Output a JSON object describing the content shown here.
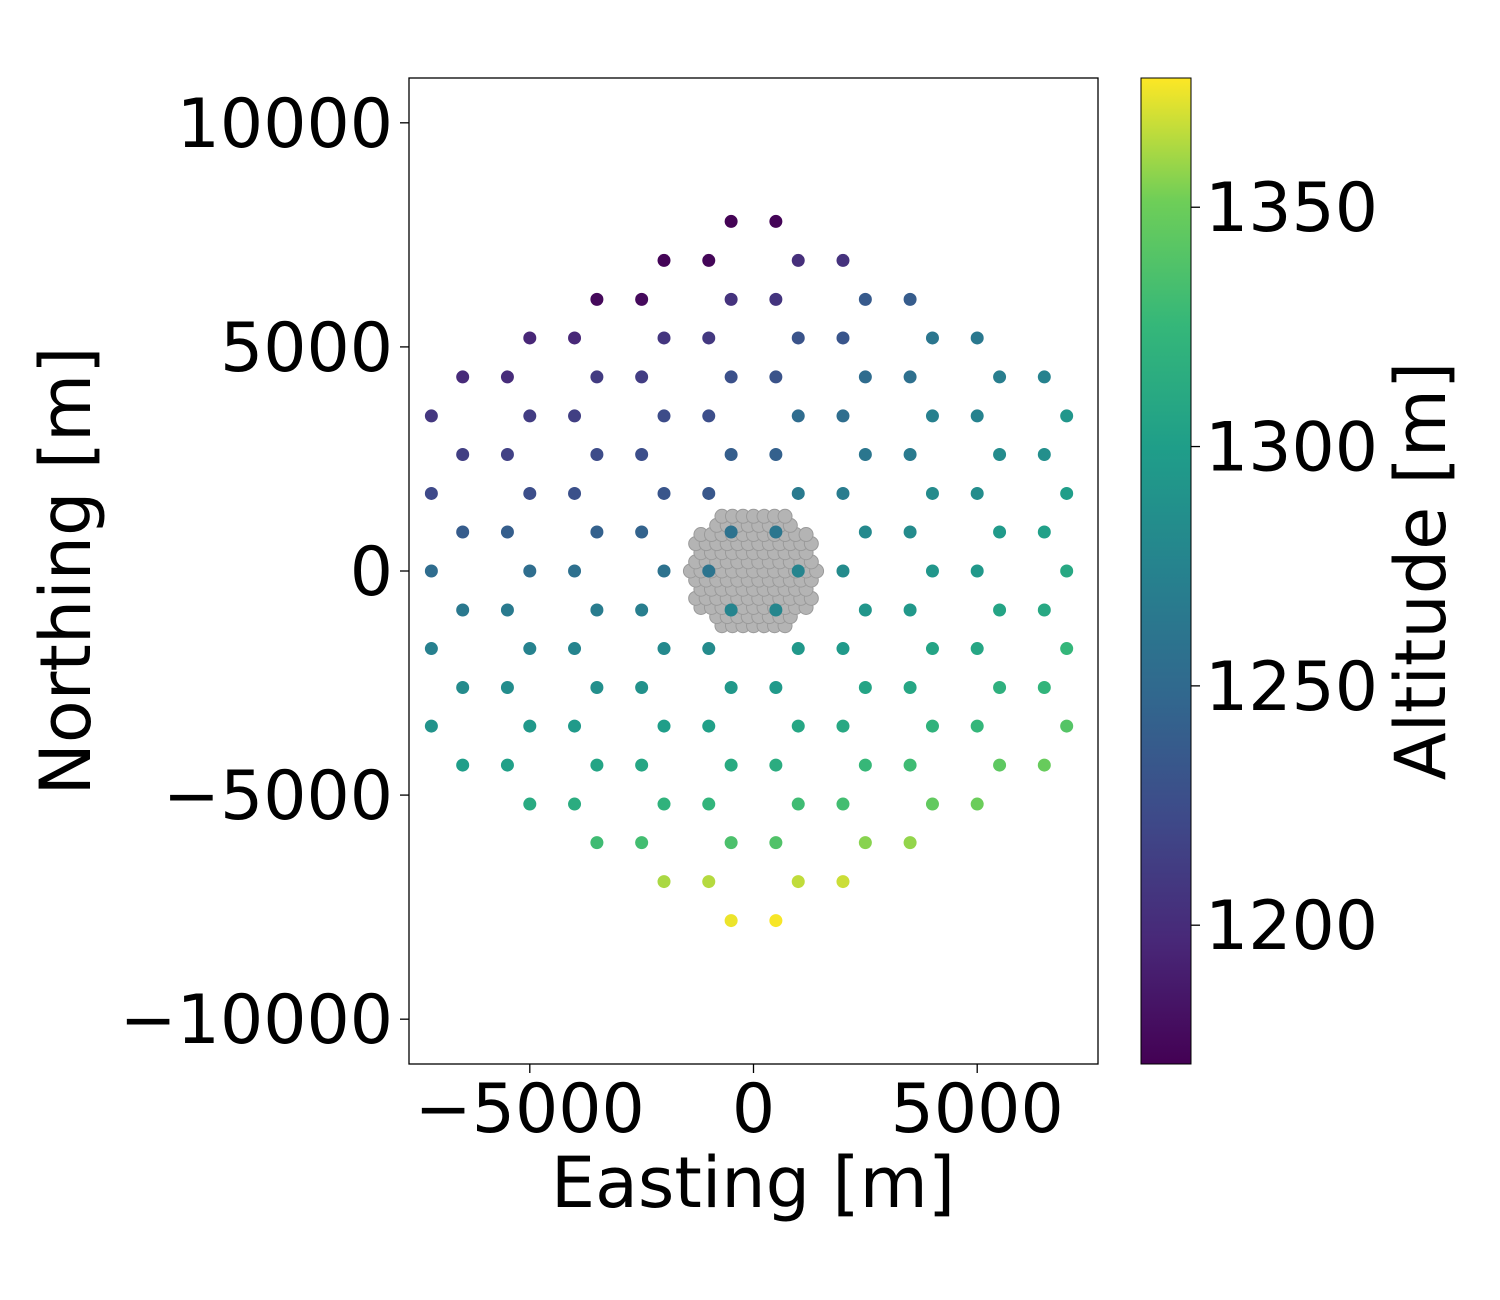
{
  "chart_data": {
    "type": "scatter",
    "xlabel": "Easting [m]",
    "ylabel": "Northing [m]",
    "xlim": [
      -7700,
      7700
    ],
    "ylim": [
      -11000,
      11000
    ],
    "xticks": [
      -5000,
      0,
      5000
    ],
    "yticks": [
      -10000,
      -5000,
      0,
      5000,
      10000
    ],
    "tick_labels": {
      "x": [
        "−5000",
        "0",
        "5000"
      ],
      "y": [
        "−10000",
        "−5000",
        "0",
        "5000",
        "10000"
      ]
    },
    "grid": false,
    "colorbar": {
      "label": "Altitude [m]",
      "colormap": "viridis",
      "range": [
        1171,
        1377
      ],
      "ticks": [
        1200,
        1250,
        1300,
        1350
      ],
      "tick_labels": [
        "1200",
        "1250",
        "1300",
        "1350"
      ]
    },
    "series": [
      {
        "marker_color_by": "altitude",
        "points": [
          [
            -500,
            7800,
            1172
          ],
          [
            500,
            7800,
            1173
          ],
          [
            -2000,
            6930,
            1173
          ],
          [
            -1000,
            6930,
            1174
          ],
          [
            1000,
            6930,
            1202
          ],
          [
            2000,
            6930,
            1204
          ],
          [
            -3500,
            6060,
            1176
          ],
          [
            -2500,
            6060,
            1177
          ],
          [
            -500,
            6060,
            1205
          ],
          [
            500,
            6060,
            1206
          ],
          [
            2500,
            6060,
            1236
          ],
          [
            3500,
            6060,
            1238
          ],
          [
            -5000,
            5200,
            1196
          ],
          [
            -4000,
            5200,
            1197
          ],
          [
            -2000,
            5200,
            1207
          ],
          [
            -1000,
            5200,
            1209
          ],
          [
            1000,
            5200,
            1230
          ],
          [
            2000,
            5200,
            1232
          ],
          [
            4000,
            5200,
            1262
          ],
          [
            5000,
            5200,
            1264
          ],
          [
            -6500,
            4330,
            1199
          ],
          [
            -5500,
            4330,
            1200
          ],
          [
            -3500,
            4330,
            1211
          ],
          [
            -2500,
            4330,
            1213
          ],
          [
            -500,
            4330,
            1228
          ],
          [
            500,
            4330,
            1230
          ],
          [
            2500,
            4330,
            1252
          ],
          [
            3500,
            4330,
            1256
          ],
          [
            5500,
            4330,
            1270
          ],
          [
            6500,
            4330,
            1274
          ],
          [
            -7200,
            3460,
            1208
          ],
          [
            -5000,
            3460,
            1212
          ],
          [
            -4000,
            3460,
            1214
          ],
          [
            -2000,
            3460,
            1224
          ],
          [
            -1000,
            3460,
            1226
          ],
          [
            1000,
            3460,
            1252
          ],
          [
            2000,
            3460,
            1254
          ],
          [
            4000,
            3460,
            1272
          ],
          [
            5000,
            3460,
            1274
          ],
          [
            7000,
            3460,
            1292
          ],
          [
            -6500,
            2600,
            1214
          ],
          [
            -5500,
            2600,
            1216
          ],
          [
            -3500,
            2600,
            1224
          ],
          [
            -2500,
            2600,
            1226
          ],
          [
            -500,
            2600,
            1240
          ],
          [
            500,
            2600,
            1242
          ],
          [
            2500,
            2600,
            1262
          ],
          [
            3500,
            2600,
            1266
          ],
          [
            5500,
            2600,
            1282
          ],
          [
            6500,
            2600,
            1286
          ],
          [
            -7200,
            1730,
            1222
          ],
          [
            -5000,
            1730,
            1226
          ],
          [
            -4000,
            1730,
            1228
          ],
          [
            -2000,
            1730,
            1232
          ],
          [
            -1000,
            1730,
            1234
          ],
          [
            1000,
            1730,
            1266
          ],
          [
            2000,
            1730,
            1268
          ],
          [
            4000,
            1730,
            1282
          ],
          [
            5000,
            1730,
            1284
          ],
          [
            7000,
            1730,
            1300
          ],
          [
            -6500,
            870,
            1238
          ],
          [
            -5500,
            870,
            1240
          ],
          [
            -3500,
            870,
            1242
          ],
          [
            -2500,
            870,
            1244
          ],
          [
            -500,
            870,
            1258
          ],
          [
            500,
            870,
            1262
          ],
          [
            2500,
            870,
            1280
          ],
          [
            3500,
            870,
            1282
          ],
          [
            5500,
            870,
            1296
          ],
          [
            6500,
            870,
            1302
          ],
          [
            -7200,
            0,
            1252
          ],
          [
            -5000,
            0,
            1254
          ],
          [
            -4000,
            0,
            1256
          ],
          [
            -2000,
            0,
            1258
          ],
          [
            -1000,
            0,
            1260
          ],
          [
            1000,
            0,
            1276
          ],
          [
            2000,
            0,
            1282
          ],
          [
            4000,
            0,
            1292
          ],
          [
            5000,
            0,
            1294
          ],
          [
            7000,
            0,
            1310
          ],
          [
            -6500,
            -870,
            1264
          ],
          [
            -5500,
            -870,
            1266
          ],
          [
            -3500,
            -870,
            1268
          ],
          [
            -2500,
            -870,
            1270
          ],
          [
            -500,
            -870,
            1276
          ],
          [
            500,
            -870,
            1278
          ],
          [
            2500,
            -870,
            1292
          ],
          [
            3500,
            -870,
            1294
          ],
          [
            5500,
            -870,
            1306
          ],
          [
            6500,
            -870,
            1310
          ],
          [
            -7200,
            -1730,
            1272
          ],
          [
            -5000,
            -1730,
            1274
          ],
          [
            -4000,
            -1730,
            1276
          ],
          [
            -2000,
            -1730,
            1280
          ],
          [
            -1000,
            -1730,
            1282
          ],
          [
            1000,
            -1730,
            1294
          ],
          [
            2000,
            -1730,
            1296
          ],
          [
            4000,
            -1730,
            1306
          ],
          [
            5000,
            -1730,
            1308
          ],
          [
            7000,
            -1730,
            1324
          ],
          [
            -6500,
            -2600,
            1282
          ],
          [
            -5500,
            -2600,
            1284
          ],
          [
            -3500,
            -2600,
            1286
          ],
          [
            -2500,
            -2600,
            1288
          ],
          [
            -500,
            -2600,
            1294
          ],
          [
            500,
            -2600,
            1296
          ],
          [
            2500,
            -2600,
            1306
          ],
          [
            3500,
            -2600,
            1308
          ],
          [
            5500,
            -2600,
            1318
          ],
          [
            6500,
            -2600,
            1322
          ],
          [
            -7200,
            -3460,
            1290
          ],
          [
            -5000,
            -3460,
            1294
          ],
          [
            -4000,
            -3460,
            1296
          ],
          [
            -2000,
            -3460,
            1300
          ],
          [
            -1000,
            -3460,
            1302
          ],
          [
            1000,
            -3460,
            1308
          ],
          [
            2000,
            -3460,
            1310
          ],
          [
            4000,
            -3460,
            1320
          ],
          [
            5000,
            -3460,
            1324
          ],
          [
            7000,
            -3460,
            1340
          ],
          [
            -6500,
            -4330,
            1300
          ],
          [
            -5500,
            -4330,
            1302
          ],
          [
            -3500,
            -4330,
            1306
          ],
          [
            -2500,
            -4330,
            1308
          ],
          [
            -500,
            -4330,
            1312
          ],
          [
            500,
            -4330,
            1314
          ],
          [
            2500,
            -4330,
            1326
          ],
          [
            3500,
            -4330,
            1330
          ],
          [
            5500,
            -4330,
            1344
          ],
          [
            6500,
            -4330,
            1348
          ],
          [
            -5000,
            -5200,
            1312
          ],
          [
            -4000,
            -5200,
            1314
          ],
          [
            -2000,
            -5200,
            1320
          ],
          [
            -1000,
            -5200,
            1322
          ],
          [
            1000,
            -5200,
            1330
          ],
          [
            2000,
            -5200,
            1332
          ],
          [
            4000,
            -5200,
            1346
          ],
          [
            5000,
            -5200,
            1350
          ],
          [
            -3500,
            -6060,
            1330
          ],
          [
            -2500,
            -6060,
            1332
          ],
          [
            -500,
            -6060,
            1336
          ],
          [
            500,
            -6060,
            1338
          ],
          [
            2500,
            -6060,
            1356
          ],
          [
            3500,
            -6060,
            1358
          ],
          [
            -2000,
            -6930,
            1362
          ],
          [
            -1000,
            -6930,
            1364
          ],
          [
            1000,
            -6930,
            1366
          ],
          [
            2000,
            -6930,
            1368
          ],
          [
            -500,
            -7800,
            1374
          ],
          [
            500,
            -7800,
            1376
          ]
        ]
      }
    ],
    "core_cluster": {
      "color": "#b4b4b4",
      "center": [
        0,
        0
      ],
      "x_extent": [
        -1500,
        1500
      ],
      "y_extent": [
        -1500,
        1500
      ]
    }
  }
}
